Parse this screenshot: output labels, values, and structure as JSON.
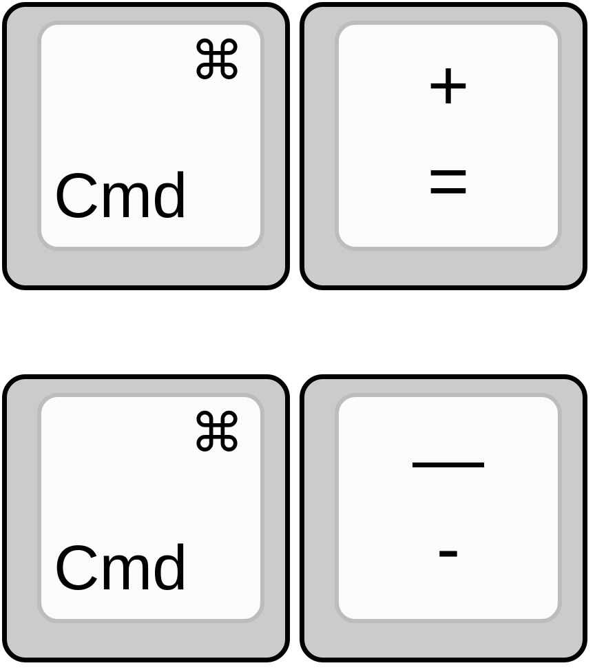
{
  "key_combos": [
    {
      "modifier": {
        "symbol": "⌘",
        "label": "Cmd"
      },
      "key": {
        "upper": "+",
        "lower": "="
      }
    },
    {
      "modifier": {
        "symbol": "⌘",
        "label": "Cmd"
      },
      "key": {
        "upper": "—",
        "lower": "-"
      }
    }
  ],
  "colors": {
    "key_outline": "#000000",
    "key_body": "#cbcbcb",
    "key_face": "#fbfbfb",
    "key_face_border": "#bcbcbc",
    "legend_text": "#000000"
  }
}
